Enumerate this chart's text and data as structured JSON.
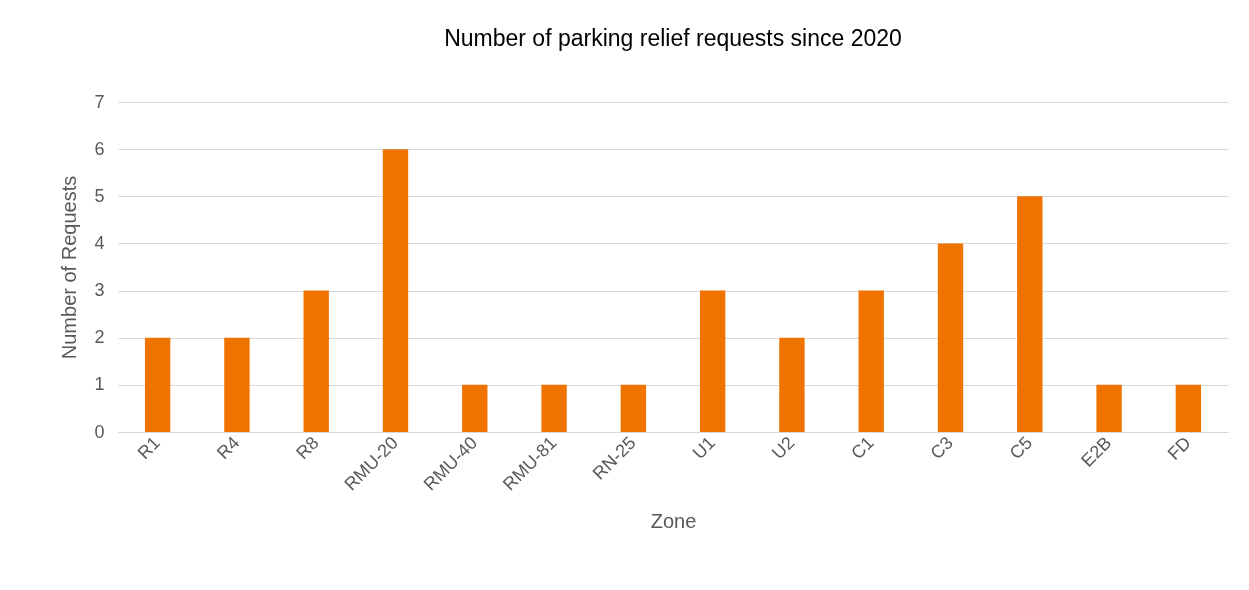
{
  "chart_data": {
    "type": "bar",
    "title": "Number of parking relief requests since 2020",
    "xlabel": "Zone",
    "ylabel": "Number of Requests",
    "categories": [
      "R1",
      "R4",
      "R8",
      "RMU-20",
      "RMU-40",
      "RMU-81",
      "RN-25",
      "U1",
      "U2",
      "C1",
      "C3",
      "C5",
      "E2B",
      "FD"
    ],
    "values": [
      2,
      2,
      3,
      6,
      1,
      1,
      1,
      3,
      2,
      3,
      4,
      5,
      1,
      1
    ],
    "color": "#f07300",
    "ylim": [
      0,
      7
    ],
    "yticks": [
      0,
      1,
      2,
      3,
      4,
      5,
      6,
      7
    ],
    "grid": "y"
  }
}
